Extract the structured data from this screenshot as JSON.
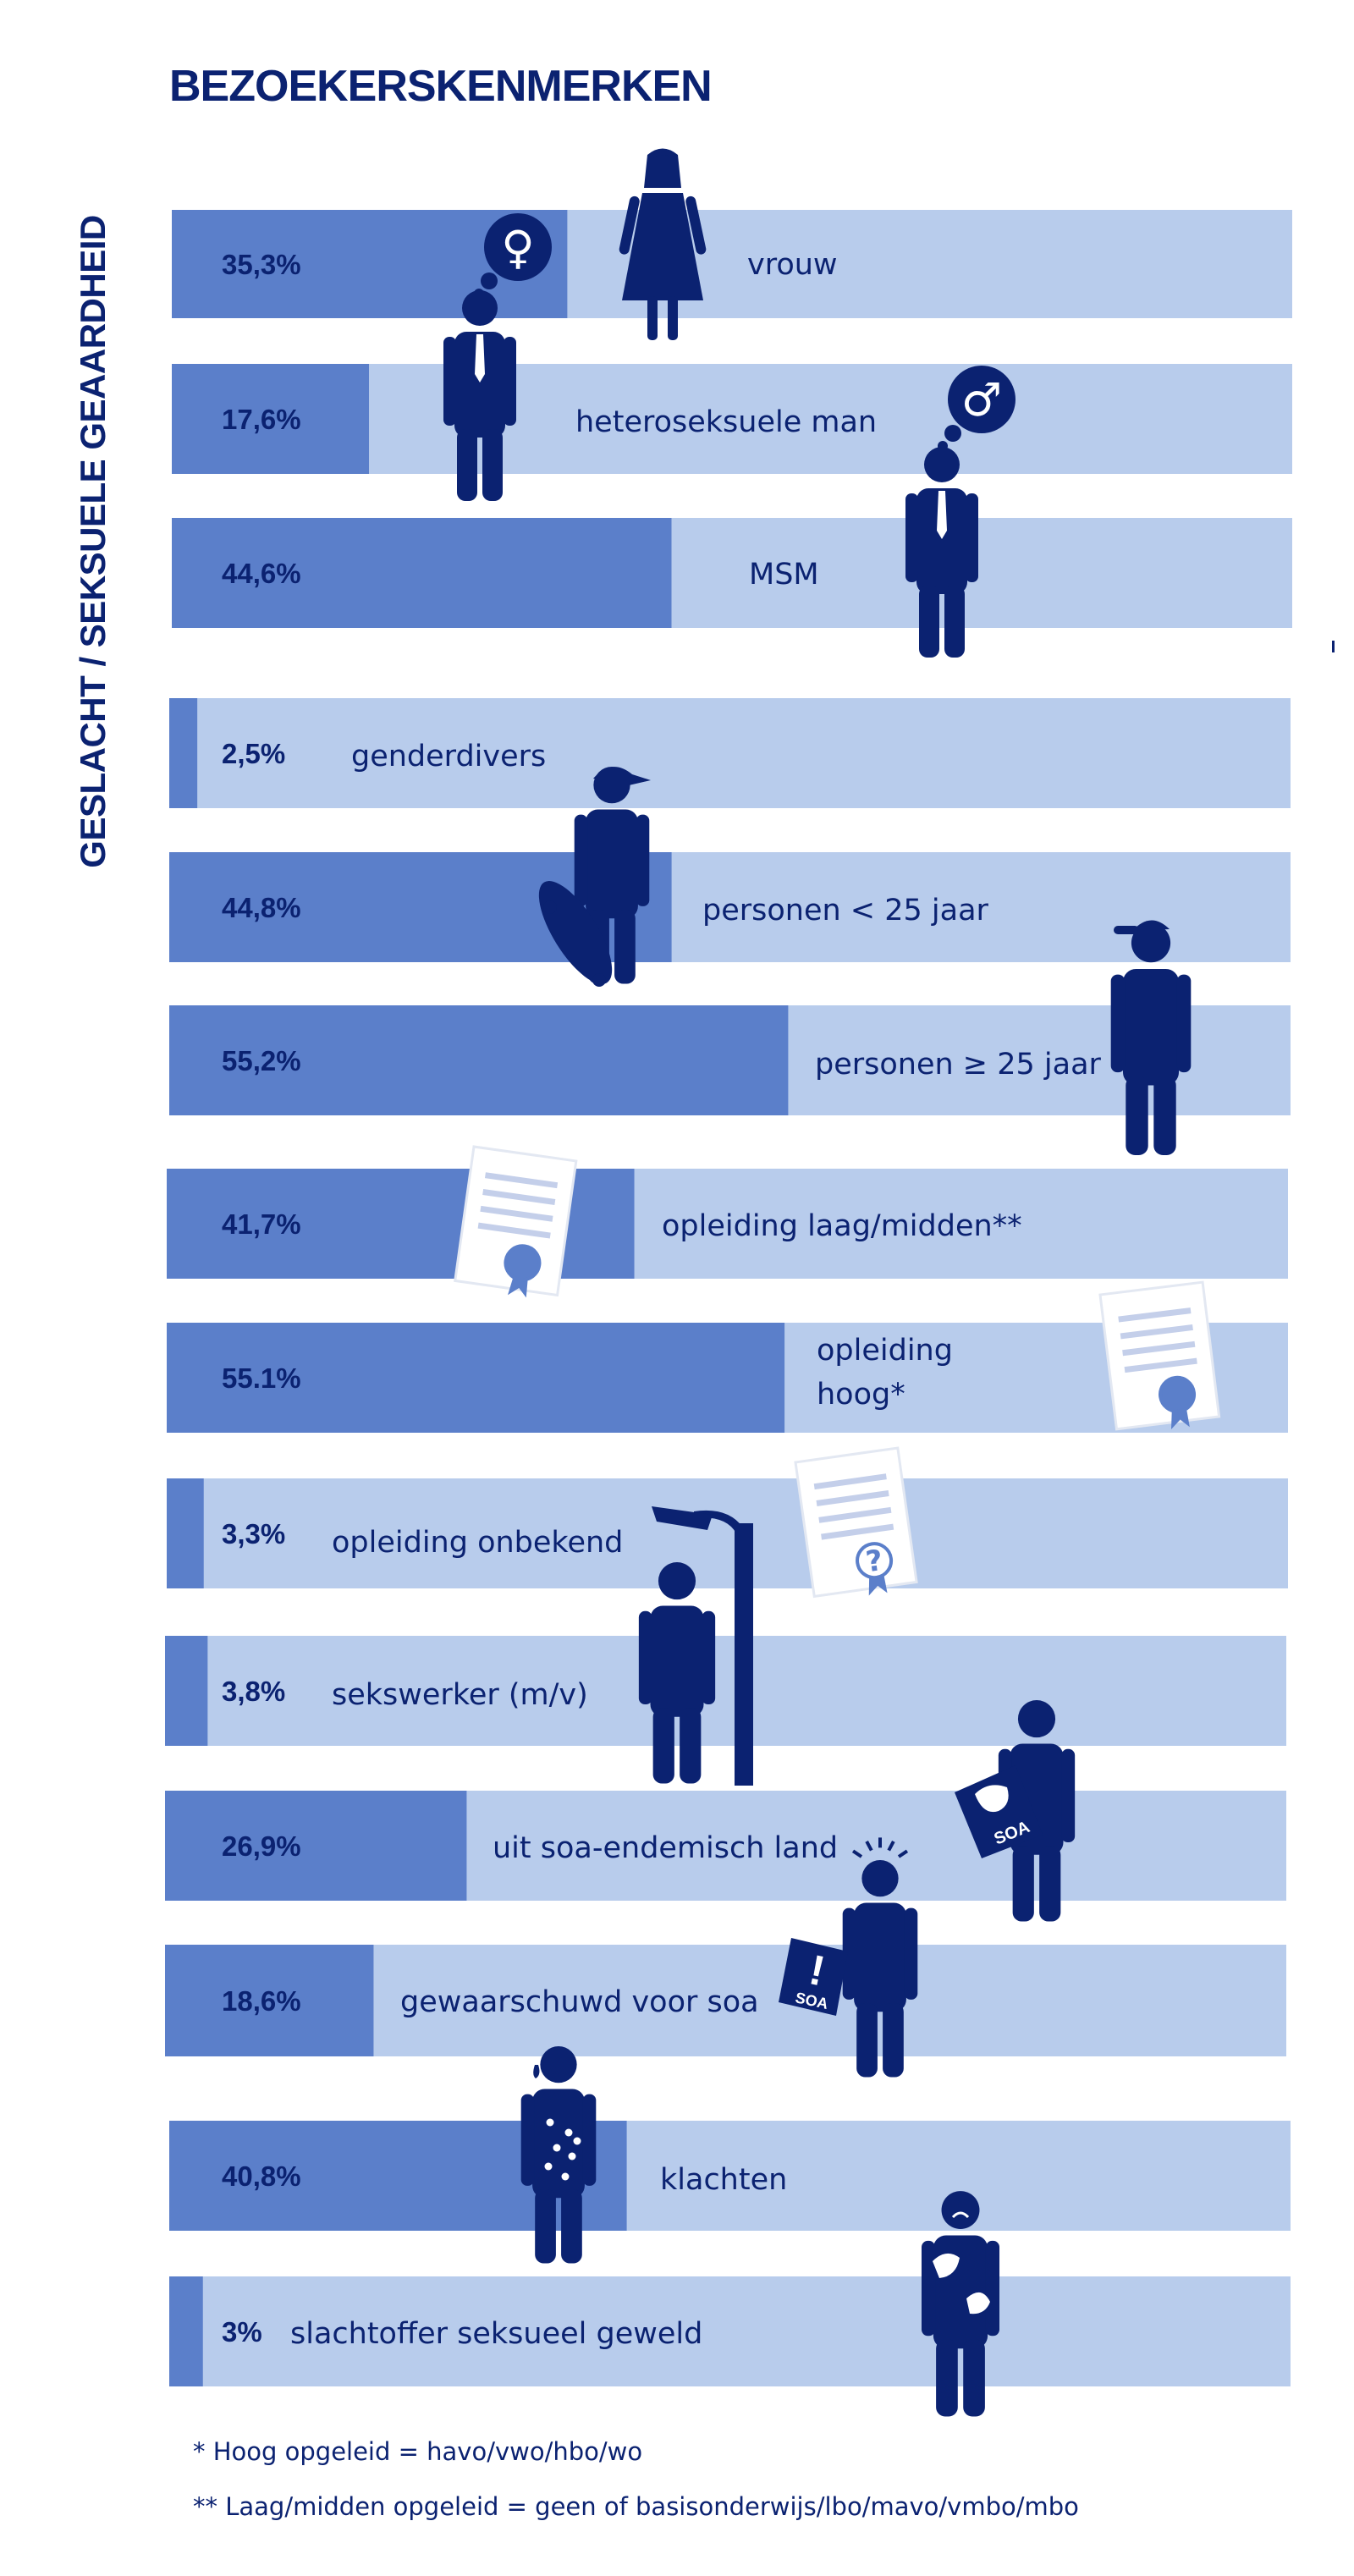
{
  "title": "BEZOEKERSKENMERKEN",
  "side_label": "GESLACHT / SEKSUELE GEAARDHEID",
  "footnotes": [
    "* Hoog opgeleid = havo/vwo/hbo/wo",
    "** Laag/midden opgeleid = geen of basisonderwijs/lbo/mavo/vmbo/mbo"
  ],
  "colors": {
    "dark": "#0b2271",
    "fill": "#5b7fca",
    "track": "#b8ccec",
    "white": "#ffffff"
  },
  "chart_data": {
    "type": "bar",
    "orientation": "horizontal",
    "title": "BEZOEKERSKENMERKEN",
    "ylabel": "GESLACHT / SEKSUELE GEAARDHEID",
    "xlim": [
      0,
      100
    ],
    "categories": [
      "vrouw",
      "heteroseksuele man",
      "MSM",
      "genderdivers",
      "personen < 25 jaar",
      "personen ≥ 25 jaar",
      "opleiding laag/midden**",
      "opleiding hoog*",
      "opleiding onbekend",
      "sekswerker (m/v)",
      "uit soa-endemisch land",
      "gewaarschuwd voor soa",
      "klachten",
      "slachtoffer seksueel geweld"
    ],
    "values": [
      35.3,
      17.6,
      44.6,
      2.5,
      44.8,
      55.2,
      41.7,
      55.1,
      3.3,
      3.8,
      26.9,
      18.6,
      40.8,
      3
    ],
    "value_labels": [
      "35,3%",
      "17,6%",
      "44,6%",
      "2,5%",
      "44,8%",
      "55,2%",
      "41,7%",
      "55.1%",
      "3,3%",
      "3,8%",
      "26,9%",
      "18,6%",
      "40,8%",
      "3%"
    ]
  },
  "icons": [
    "woman-icon",
    "female-symbol-icon",
    "man-in-tie-icon",
    "male-symbol-icon",
    "man-in-tie-icon",
    "youth-with-skateboard-icon",
    "adult-with-cap-icon",
    "diploma-icon",
    "diploma-icon",
    "diploma-question-icon",
    "streetlamp-icon",
    "person-icon",
    "person-with-map-icon",
    "alarmed-person-icon",
    "soa-warning-sign-icon",
    "person-with-spots-icon",
    "sad-person-icon"
  ]
}
